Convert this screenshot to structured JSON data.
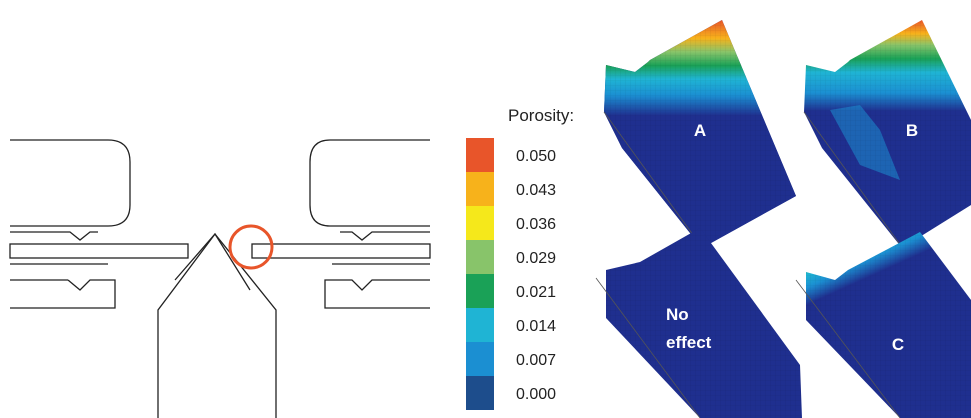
{
  "legend": {
    "title": "Porosity:",
    "entries": [
      {
        "value": "0.050",
        "color": "#e8552a"
      },
      {
        "value": "0.043",
        "color": "#f7b21b"
      },
      {
        "value": "0.036",
        "color": "#f5e81b"
      },
      {
        "value": "0.029",
        "color": "#88c46a"
      },
      {
        "value": "0.021",
        "color": "#1aa157"
      },
      {
        "value": "0.014",
        "color": "#1fb4d4"
      },
      {
        "value": "0.007",
        "color": "#1b8fd2"
      },
      {
        "value": "0.000",
        "color": "#1d4d8c"
      }
    ]
  },
  "panels": [
    {
      "label": "A",
      "effect": "top-band"
    },
    {
      "label": "B",
      "effect": "top-band-with-tail"
    },
    {
      "label_line1": "No",
      "label_line2": "effect",
      "effect": "none"
    },
    {
      "label": "C",
      "effect": "top-right-band"
    }
  ],
  "colors": {
    "mesh_base": "#1f2f8f",
    "highlight_circle": "#e8552a",
    "line": "#222222"
  }
}
